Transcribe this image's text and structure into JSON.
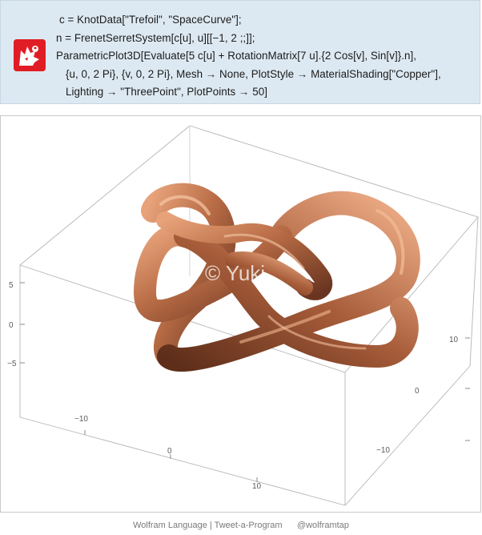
{
  "code": {
    "lines": [
      "c = KnotData[\"Trefoil\", \"SpaceCurve\"];",
      "n = FrenetSerretSystem[c[u], u][[−1, 2 ;;]];",
      "ParametricPlot3D[Evaluate[5 c[u] + RotationMatrix[7 u].{2 Cos[v], Sin[v]}.n],",
      "{u, 0, 2 Pi}, {v, 0, 2 Pi}, Mesh → None, PlotStyle → MaterialShading[\"Copper\"],",
      "Lighting → \"ThreePoint\", PlotPoints → 50]"
    ],
    "logo_icon": "wolfram-wolf-icon"
  },
  "plot": {
    "watermark": "© Yuki",
    "material_color": "#b8704a",
    "axis_left_ticks": [
      "5",
      "0",
      "−5"
    ],
    "axis_bottom_ticks": [
      "−10",
      "0",
      "10"
    ],
    "axis_right_ticks": [
      "10",
      "0",
      "−10"
    ]
  },
  "footer": {
    "left": "Wolfram Language",
    "separator": "|",
    "middle": "Tweet-a-Program",
    "handle": "@wolframtap"
  }
}
